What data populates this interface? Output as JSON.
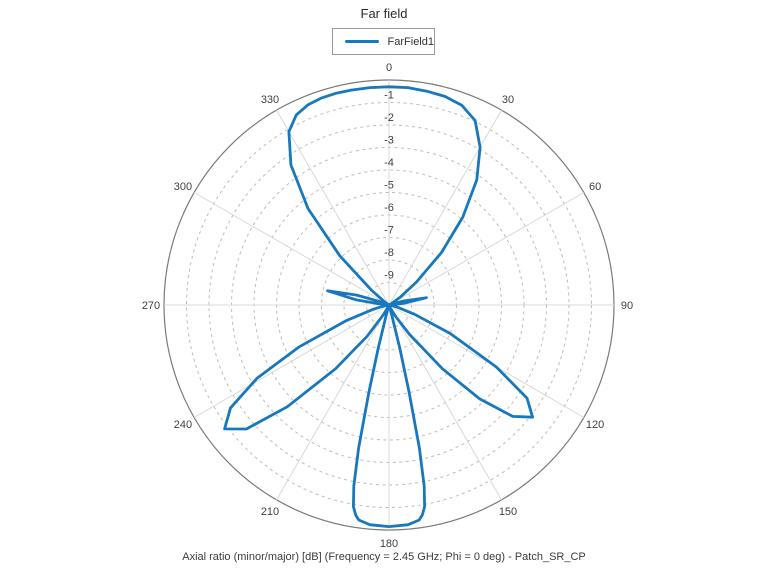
{
  "chart_data": {
    "type": "line",
    "subtype": "polar",
    "title": "Far field",
    "caption": "Axial ratio (minor/major) [dB] (Frequency = 2.45 GHz; Phi = 0 deg) - Patch_SR_CP",
    "legend_position": "top-center",
    "angle_axis": {
      "unit": "deg",
      "direction": "clockwise",
      "zero_position": "top",
      "tick_labels": [
        "0",
        "30",
        "60",
        "90",
        "120",
        "150",
        "180",
        "210",
        "240",
        "270",
        "300",
        "330"
      ],
      "tick_step": 30
    },
    "radial_axis": {
      "label": "Axial ratio (minor/major) [dB]",
      "min": -10,
      "max": 0,
      "ring_step": 1,
      "tick_labels": [
        "-1",
        "-2",
        "-3",
        "-4",
        "-5",
        "-6",
        "-7",
        "-8",
        "-9"
      ],
      "grid": "dashed-rings-with-30deg-spokes"
    },
    "series": [
      {
        "name": "FarField1",
        "color": "#1878be",
        "points_theta_deg_db": [
          [
            0,
            -0.3
          ],
          [
            5,
            -0.3
          ],
          [
            10,
            -0.35
          ],
          [
            15,
            -0.4
          ],
          [
            20,
            -0.55
          ],
          [
            25,
            -0.95
          ],
          [
            30,
            -1.9
          ],
          [
            35,
            -3.2
          ],
          [
            40,
            -4.9
          ],
          [
            45,
            -6.7
          ],
          [
            50,
            -8.4
          ],
          [
            55,
            -9.4
          ],
          [
            60,
            -9.85
          ],
          [
            65,
            -10
          ],
          [
            70,
            -9.9
          ],
          [
            75,
            -9.3
          ],
          [
            79,
            -8.3
          ],
          [
            83,
            -9.3
          ],
          [
            87,
            -9.8
          ],
          [
            90,
            -9.95
          ],
          [
            95,
            -10
          ],
          [
            100,
            -9.9
          ],
          [
            105,
            -9.6
          ],
          [
            110,
            -8.8
          ],
          [
            115,
            -7.0
          ],
          [
            120,
            -4.5
          ],
          [
            124,
            -2.6
          ],
          [
            128,
            -1.9
          ],
          [
            132,
            -2.6
          ],
          [
            136,
            -4.2
          ],
          [
            140,
            -6.3
          ],
          [
            145,
            -8.4
          ],
          [
            150,
            -9.4
          ],
          [
            155,
            -9.85
          ],
          [
            160,
            -10
          ],
          [
            164,
            -9.7
          ],
          [
            166,
            -8.0
          ],
          [
            167,
            -6.0
          ],
          [
            168,
            -3.5
          ],
          [
            169,
            -1.8
          ],
          [
            170,
            -0.9
          ],
          [
            171,
            -0.55
          ],
          [
            172,
            -0.35
          ],
          [
            175,
            -0.2
          ],
          [
            180,
            -0.15
          ],
          [
            185,
            -0.2
          ],
          [
            188,
            -0.35
          ],
          [
            189,
            -0.55
          ],
          [
            190,
            -0.9
          ],
          [
            191,
            -1.8
          ],
          [
            192,
            -3.5
          ],
          [
            193,
            -6.0
          ],
          [
            194,
            -8.0
          ],
          [
            196,
            -9.7
          ],
          [
            200,
            -10
          ],
          [
            205,
            -9.9
          ],
          [
            210,
            -9.5
          ],
          [
            215,
            -8.3
          ],
          [
            220,
            -6.3
          ],
          [
            225,
            -3.6
          ],
          [
            229,
            -1.6
          ],
          [
            233,
            -0.85
          ],
          [
            237,
            -1.6
          ],
          [
            241,
            -3.3
          ],
          [
            245,
            -5.6
          ],
          [
            250,
            -8.0
          ],
          [
            255,
            -9.3
          ],
          [
            260,
            -9.8
          ],
          [
            265,
            -10
          ],
          [
            270,
            -10
          ],
          [
            275,
            -9.7
          ],
          [
            279,
            -8.5
          ],
          [
            283,
            -7.2
          ],
          [
            287,
            -8.5
          ],
          [
            291,
            -9.6
          ],
          [
            295,
            -9.9
          ],
          [
            300,
            -10
          ],
          [
            305,
            -9.8
          ],
          [
            310,
            -9.0
          ],
          [
            315,
            -6.9
          ],
          [
            320,
            -4.4
          ],
          [
            325,
            -2.4
          ],
          [
            330,
            -1.1
          ],
          [
            334,
            -0.6
          ],
          [
            338,
            -0.4
          ],
          [
            342,
            -0.32
          ],
          [
            346,
            -0.3
          ],
          [
            350,
            -0.3
          ],
          [
            355,
            -0.3
          ],
          [
            360,
            -0.3
          ]
        ]
      }
    ],
    "annotation_frequency": "2.45 GHz",
    "annotation_phi": "0 deg",
    "annotation_model": "Patch_SR_CP"
  },
  "colors": {
    "curve": "#1878be",
    "outer_ring": "#7a7a7a",
    "grid_ring": "#c4bcae",
    "spoke": "#d8d8d8",
    "tick_label": "#404040",
    "legend_border": "#9a9a9a",
    "background": "#ffffff"
  }
}
